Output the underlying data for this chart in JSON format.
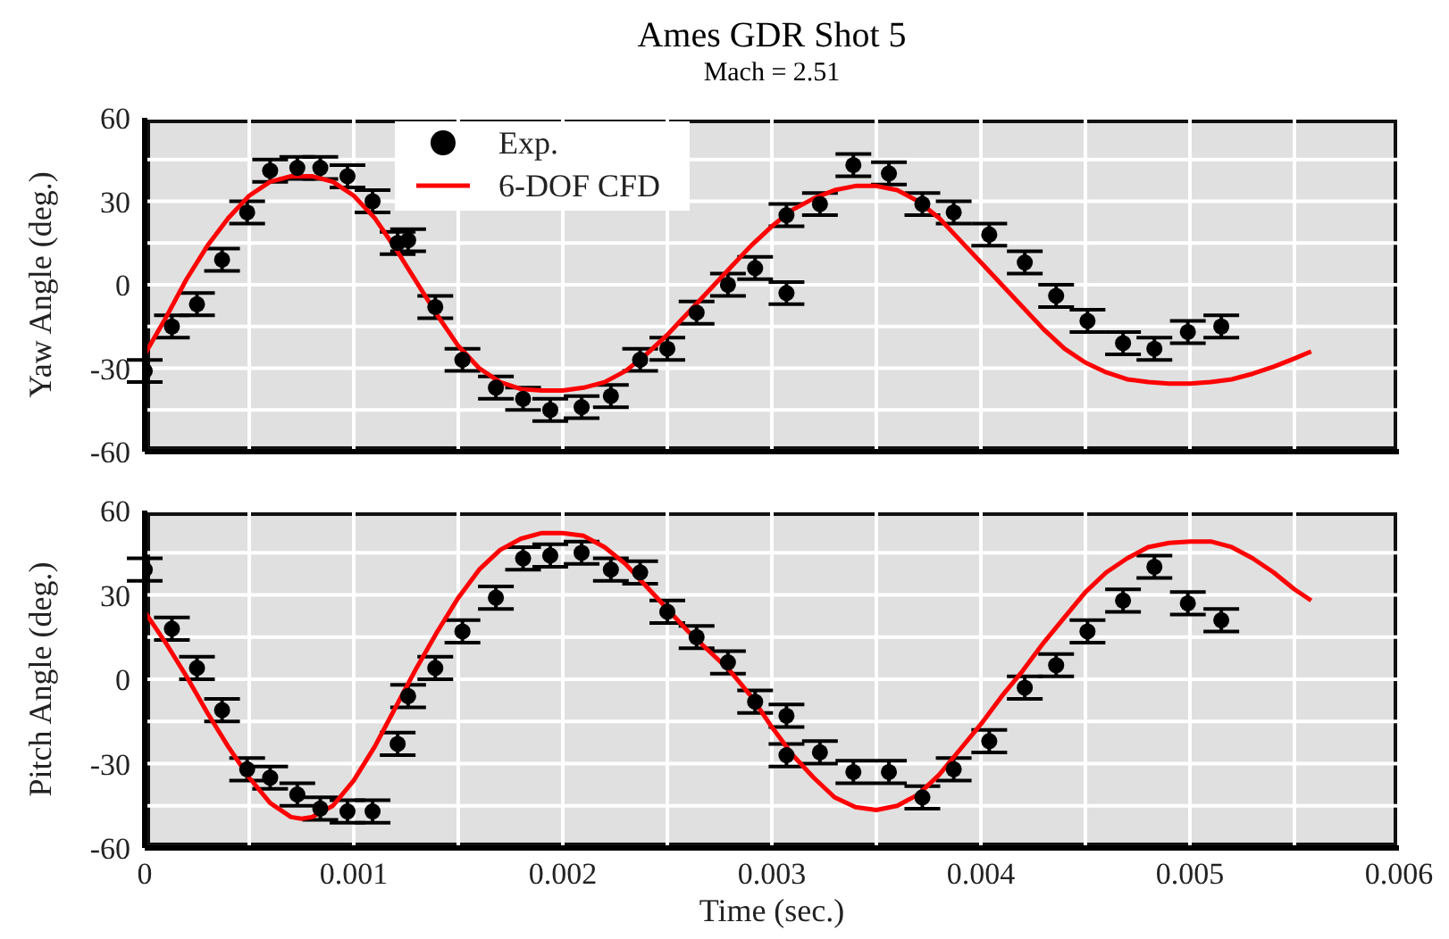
{
  "chart_data": [
    {
      "type": "scatter",
      "title": "Ames GDR Shot 5",
      "subtitle": "Mach = 2.51",
      "ylabel": "Yaw Angle (deg.)",
      "xlim": [
        0,
        0.006
      ],
      "xticks": [
        0,
        {
          "value": 0.0005,
          "label": null
        },
        0.001,
        {
          "value": 0.0015,
          "label": null
        },
        0.002,
        {
          "value": 0.0025,
          "label": null
        },
        0.003,
        {
          "value": 0.0035,
          "label": null
        },
        0.004,
        {
          "value": 0.0045,
          "label": null
        },
        0.005,
        {
          "value": 0.0055,
          "label": null
        },
        0.006
      ],
      "ylim": [
        -60,
        60
      ],
      "yticks": [
        -60,
        {
          "value": -45,
          "label": null
        },
        -30,
        {
          "value": -15,
          "label": null
        },
        0,
        {
          "value": 15,
          "label": null
        },
        30,
        {
          "value": 45,
          "label": null
        },
        60
      ],
      "tick_labels": "y",
      "grid": true,
      "legend": "top",
      "series": [
        {
          "name": "Exp.",
          "color": "#000000",
          "marker": "circle",
          "x": [
            0,
            0.00013,
            0.00025,
            0.00037,
            0.00049,
            0.0006,
            0.00073,
            0.00084,
            0.00097,
            0.00109,
            0.00121,
            0.00126,
            0.00139,
            0.00152,
            0.00168,
            0.00181,
            0.00194,
            0.00209,
            0.00223,
            0.00237,
            0.0025,
            0.00264,
            0.00279,
            0.00292,
            0.00307,
            0.00307,
            0.00323,
            0.00339,
            0.00356,
            0.00372,
            0.00387,
            0.00404,
            0.00421,
            0.00436,
            0.00451,
            0.00468,
            0.00483,
            0.00499,
            0.00515
          ],
          "values": [
            -31,
            -15,
            -7,
            9,
            26,
            41,
            42,
            42,
            39,
            30,
            15,
            16,
            -8,
            -27,
            -37,
            -41,
            -45,
            -44,
            -40,
            -27,
            -23,
            -10,
            0,
            6,
            -3,
            25,
            29,
            43,
            40,
            29,
            26,
            18,
            8,
            -4,
            -13,
            -21,
            -23,
            -17,
            -15
          ],
          "errors": [
            4,
            4,
            4,
            4,
            4,
            4,
            4,
            4,
            4,
            4,
            4,
            4,
            4,
            4,
            4,
            4,
            4,
            4,
            4,
            4,
            4,
            4,
            4,
            4,
            4,
            4,
            4,
            4,
            4,
            4,
            4,
            4,
            4,
            4,
            4,
            4,
            4,
            4,
            4
          ]
        },
        {
          "name": "6-DOF CFD",
          "type": "line",
          "color": "#ff0000",
          "marker": "none",
          "line_style": "solid",
          "x": [
            0,
            0.0001,
            0.0002,
            0.0003,
            0.0004,
            0.0005,
            0.0006,
            0.0007,
            0.0008,
            0.0009,
            0.001,
            0.0011,
            0.0012,
            0.0013,
            0.0014,
            0.0015,
            0.0016,
            0.0017,
            0.0018,
            0.0019,
            0.002,
            0.0021,
            0.0022,
            0.0023,
            0.0024,
            0.0025,
            0.0026,
            0.0027,
            0.0028,
            0.0029,
            0.003,
            0.0031,
            0.0032,
            0.0033,
            0.0034,
            0.0035,
            0.0036,
            0.0037,
            0.0038,
            0.0039,
            0.004,
            0.0041,
            0.0042,
            0.0043,
            0.0044,
            0.0045,
            0.0046,
            0.0047,
            0.0048,
            0.0049,
            0.005,
            0.0051,
            0.0052,
            0.0053,
            0.0054,
            0.0055,
            0.00558
          ],
          "values": [
            -25,
            -12,
            2,
            14,
            24,
            32,
            37,
            39,
            39,
            37,
            32,
            24,
            13,
            1,
            -11,
            -22,
            -30,
            -35,
            -37.5,
            -38,
            -38,
            -37,
            -35,
            -31,
            -25,
            -18,
            -10,
            -2,
            6,
            14,
            21,
            27,
            31,
            34,
            35.5,
            35.5,
            34,
            30,
            24,
            16,
            8,
            0,
            -8,
            -16,
            -23,
            -28,
            -31.5,
            -34,
            -35,
            -35.5,
            -35.5,
            -35,
            -34,
            -32,
            -29.5,
            -26.5,
            -24
          ]
        }
      ]
    },
    {
      "type": "scatter",
      "xlabel": "Time (sec.)",
      "ylabel": "Pitch Angle (deg.)",
      "xlim": [
        0,
        0.006
      ],
      "xticks": [
        0,
        {
          "value": 0.0005,
          "label": null
        },
        0.001,
        {
          "value": 0.0015,
          "label": null
        },
        0.002,
        {
          "value": 0.0025,
          "label": null
        },
        0.003,
        {
          "value": 0.0035,
          "label": null
        },
        0.004,
        {
          "value": 0.0045,
          "label": null
        },
        0.005,
        {
          "value": 0.0055,
          "label": null
        },
        0.006
      ],
      "ylim": [
        -60,
        60
      ],
      "yticks": [
        -60,
        {
          "value": -45,
          "label": null
        },
        -30,
        {
          "value": -15,
          "label": null
        },
        0,
        {
          "value": 15,
          "label": null
        },
        30,
        {
          "value": 45,
          "label": null
        },
        60
      ],
      "grid": true,
      "series": [
        {
          "color": "#000000",
          "marker": "circle",
          "x": [
            0,
            0.00013,
            0.00025,
            0.00037,
            0.00049,
            0.0006,
            0.00073,
            0.00084,
            0.00097,
            0.00109,
            0.00121,
            0.00126,
            0.00139,
            0.00152,
            0.00168,
            0.00181,
            0.00194,
            0.00209,
            0.00223,
            0.00237,
            0.0025,
            0.00264,
            0.00279,
            0.00292,
            0.00307,
            0.00307,
            0.00323,
            0.00339,
            0.00356,
            0.00372,
            0.00387,
            0.00404,
            0.00421,
            0.00436,
            0.00451,
            0.00468,
            0.00483,
            0.00499,
            0.00515
          ],
          "values": [
            39,
            18,
            4,
            -11,
            -32,
            -35,
            -41,
            -46,
            -47,
            -47,
            -23,
            -6,
            4,
            17,
            29,
            43,
            44,
            45,
            39,
            38,
            24,
            15,
            6,
            -8,
            -13,
            -27,
            -26,
            -33,
            -33,
            -42,
            -32,
            -22,
            -3,
            5,
            17,
            28,
            40,
            27,
            21
          ],
          "errors": [
            4,
            4,
            4,
            4,
            4,
            4,
            4,
            4,
            4,
            4,
            4,
            4,
            4,
            4,
            4,
            4,
            4,
            4,
            4,
            4,
            4,
            4,
            4,
            4,
            4,
            4,
            4,
            4,
            4,
            4,
            4,
            4,
            4,
            4,
            4,
            4,
            4,
            4,
            4
          ]
        },
        {
          "type": "line",
          "color": "#ff0000",
          "marker": "none",
          "line_style": "solid",
          "x": [
            0,
            0.0001,
            0.0002,
            0.0003,
            0.0004,
            0.0005,
            0.0006,
            0.0007,
            0.00075,
            0.0008,
            0.0009,
            0.001,
            0.0011,
            0.0012,
            0.0013,
            0.0014,
            0.0015,
            0.0016,
            0.0017,
            0.0018,
            0.0019,
            0.002,
            0.0021,
            0.0022,
            0.0023,
            0.0024,
            0.0025,
            0.0026,
            0.0027,
            0.0028,
            0.0029,
            0.003,
            0.0031,
            0.0032,
            0.0033,
            0.0034,
            0.0035,
            0.0036,
            0.0037,
            0.0038,
            0.0039,
            0.004,
            0.0041,
            0.0042,
            0.0043,
            0.0044,
            0.0045,
            0.0046,
            0.0047,
            0.0048,
            0.0049,
            0.005,
            0.0051,
            0.0052,
            0.0053,
            0.0054,
            0.0055,
            0.00558
          ],
          "values": [
            24,
            13,
            1,
            -12,
            -24,
            -35,
            -44,
            -49,
            -49.6,
            -49,
            -45,
            -36,
            -24,
            -10,
            4,
            17,
            29,
            39,
            46,
            50,
            52,
            52,
            51,
            47,
            41,
            33,
            25,
            17,
            10,
            3,
            -6,
            -17,
            -27,
            -35,
            -42,
            -45.5,
            -46.5,
            -45,
            -41,
            -34,
            -25,
            -16,
            -6,
            3,
            13,
            22,
            31,
            38,
            43,
            47,
            48.5,
            49,
            49,
            47,
            43,
            38,
            32,
            28
          ]
        }
      ]
    }
  ]
}
